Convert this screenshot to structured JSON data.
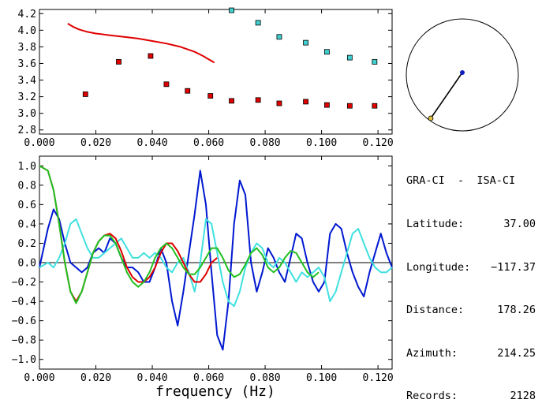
{
  "chart_data": [
    {
      "type": "scatter",
      "panel": "top",
      "xlim": [
        0.0,
        0.125
      ],
      "ylim": [
        2.75,
        4.25
      ],
      "xticks": [
        0.0,
        0.02,
        0.04,
        0.06,
        0.08,
        0.1,
        0.12
      ],
      "xtick_labels": [
        "0.000",
        "0.020",
        "0.040",
        "0.060",
        "0.080",
        "0.100",
        "0.120"
      ],
      "yticks": [
        2.8,
        3.0,
        3.2,
        3.4,
        3.6,
        3.8,
        4.0,
        4.2
      ],
      "ytick_labels": [
        "2.8",
        "3.0",
        "3.2",
        "3.4",
        "3.6",
        "3.8",
        "4.0",
        "4.2"
      ],
      "series": [
        {
          "color": "#e00000",
          "style": "line",
          "x": [
            0.01,
            0.012,
            0.014,
            0.017,
            0.02,
            0.025,
            0.03,
            0.035,
            0.04,
            0.045,
            0.05,
            0.055,
            0.058,
            0.06,
            0.062
          ],
          "y": [
            4.08,
            4.04,
            4.01,
            3.98,
            3.96,
            3.94,
            3.92,
            3.9,
            3.87,
            3.84,
            3.8,
            3.74,
            3.69,
            3.65,
            3.61
          ]
        },
        {
          "color": "#e00000",
          "style": "squares",
          "x": [
            0.0163,
            0.0281,
            0.0394,
            0.045,
            0.0525,
            0.0606,
            0.0681,
            0.0775,
            0.085,
            0.0944,
            0.1019,
            0.11,
            0.1188
          ],
          "y": [
            3.23,
            3.62,
            3.69,
            3.35,
            3.27,
            3.21,
            3.15,
            3.16,
            3.12,
            3.14,
            3.1,
            3.09,
            3.09
          ]
        },
        {
          "color": "#40d0d0",
          "style": "squares",
          "x": [
            0.0681,
            0.0775,
            0.085,
            0.0944,
            0.1019,
            0.11,
            0.1188
          ],
          "y": [
            4.24,
            4.09,
            3.92,
            3.85,
            3.74,
            3.67,
            3.62
          ]
        }
      ]
    },
    {
      "type": "line",
      "panel": "bottom",
      "xlim": [
        0.0,
        0.125
      ],
      "ylim": [
        -1.1,
        1.1
      ],
      "xlabel": "frequency (Hz)",
      "xticks": [
        0.0,
        0.02,
        0.04,
        0.06,
        0.08,
        0.1,
        0.12
      ],
      "xtick_labels": [
        "0.000",
        "0.020",
        "0.040",
        "0.060",
        "0.080",
        "0.100",
        "0.120"
      ],
      "yticks": [
        -1.0,
        -0.8,
        -0.6,
        -0.4,
        -0.2,
        0.0,
        0.2,
        0.4,
        0.6,
        0.8,
        1.0
      ],
      "ytick_labels": [
        "−1.0",
        "−0.8",
        "−0.6",
        "−0.4",
        "−0.2",
        "0.0",
        "0.2",
        "0.4",
        "0.6",
        "0.8",
        "1.0"
      ],
      "zero_line": true,
      "series": [
        {
          "color": "#0018d0",
          "x": [
            0.0,
            0.003,
            0.005,
            0.007,
            0.009,
            0.011,
            0.013,
            0.015,
            0.017,
            0.019,
            0.021,
            0.023,
            0.025,
            0.027,
            0.029,
            0.031,
            0.033,
            0.035,
            0.037,
            0.039,
            0.041,
            0.043,
            0.045,
            0.047,
            0.049,
            0.051,
            0.053,
            0.055,
            0.057,
            0.059,
            0.061,
            0.063,
            0.065,
            0.067,
            0.069,
            0.071,
            0.073,
            0.075,
            0.077,
            0.079,
            0.081,
            0.083,
            0.085,
            0.087,
            0.089,
            0.091,
            0.093,
            0.095,
            0.097,
            0.099,
            0.101,
            0.103,
            0.105,
            0.107,
            0.109,
            0.111,
            0.113,
            0.115,
            0.117,
            0.119,
            0.121,
            0.123,
            0.125
          ],
          "y": [
            -0.05,
            0.35,
            0.55,
            0.45,
            0.2,
            0.0,
            -0.05,
            -0.1,
            -0.05,
            0.1,
            0.15,
            0.1,
            0.25,
            0.2,
            0.05,
            -0.05,
            -0.05,
            -0.1,
            -0.2,
            -0.2,
            -0.05,
            0.15,
            0.0,
            -0.4,
            -0.65,
            -0.3,
            0.1,
            0.5,
            0.95,
            0.6,
            -0.1,
            -0.75,
            -0.9,
            -0.4,
            0.4,
            0.85,
            0.7,
            0.0,
            -0.3,
            -0.1,
            0.15,
            0.05,
            -0.1,
            -0.2,
            0.05,
            0.3,
            0.25,
            0.0,
            -0.2,
            -0.3,
            -0.2,
            0.3,
            0.4,
            0.35,
            0.1,
            -0.1,
            -0.25,
            -0.35,
            -0.1,
            0.1,
            0.3,
            0.1,
            -0.05
          ]
        },
        {
          "color": "#40e0e0",
          "x": [
            0.0,
            0.003,
            0.005,
            0.007,
            0.009,
            0.011,
            0.013,
            0.015,
            0.017,
            0.019,
            0.021,
            0.023,
            0.025,
            0.027,
            0.029,
            0.031,
            0.033,
            0.035,
            0.037,
            0.039,
            0.041,
            0.043,
            0.045,
            0.047,
            0.049,
            0.051,
            0.053,
            0.055,
            0.057,
            0.059,
            0.061,
            0.063,
            0.065,
            0.067,
            0.069,
            0.071,
            0.073,
            0.075,
            0.077,
            0.079,
            0.081,
            0.083,
            0.085,
            0.087,
            0.089,
            0.091,
            0.093,
            0.095,
            0.097,
            0.099,
            0.101,
            0.103,
            0.105,
            0.107,
            0.109,
            0.111,
            0.113,
            0.115,
            0.117,
            0.119,
            0.121,
            0.123,
            0.125
          ],
          "y": [
            -0.05,
            0.0,
            -0.05,
            0.05,
            0.2,
            0.4,
            0.45,
            0.3,
            0.15,
            0.05,
            0.05,
            0.1,
            0.15,
            0.2,
            0.25,
            0.15,
            0.05,
            0.05,
            0.1,
            0.05,
            0.1,
            0.05,
            -0.05,
            -0.1,
            0.0,
            0.05,
            -0.1,
            -0.3,
            0.0,
            0.45,
            0.4,
            0.1,
            -0.2,
            -0.4,
            -0.45,
            -0.3,
            -0.05,
            0.1,
            0.2,
            0.15,
            0.0,
            -0.05,
            0.05,
            0.0,
            -0.1,
            -0.2,
            -0.1,
            -0.15,
            -0.1,
            -0.05,
            -0.15,
            -0.4,
            -0.3,
            -0.1,
            0.1,
            0.3,
            0.35,
            0.2,
            0.05,
            -0.05,
            -0.1,
            -0.1,
            -0.05
          ]
        },
        {
          "color": "#e00000",
          "x": [
            0.0,
            0.003,
            0.005,
            0.007,
            0.009,
            0.011,
            0.013,
            0.015,
            0.017,
            0.019,
            0.021,
            0.023,
            0.025,
            0.027,
            0.029,
            0.031,
            0.033,
            0.035,
            0.037,
            0.039,
            0.041,
            0.043,
            0.045,
            0.047,
            0.049,
            0.051,
            0.053,
            0.055,
            0.057,
            0.059,
            0.061,
            0.063
          ],
          "y": [
            1.0,
            0.95,
            0.75,
            0.4,
            0.0,
            -0.3,
            -0.4,
            -0.3,
            -0.1,
            0.1,
            0.22,
            0.28,
            0.3,
            0.25,
            0.12,
            -0.05,
            -0.15,
            -0.2,
            -0.2,
            -0.15,
            -0.05,
            0.1,
            0.2,
            0.2,
            0.12,
            0.0,
            -0.12,
            -0.2,
            -0.2,
            -0.12,
            0.0,
            0.05
          ]
        },
        {
          "color": "#20c020",
          "x": [
            0.0,
            0.003,
            0.005,
            0.007,
            0.009,
            0.011,
            0.013,
            0.015,
            0.017,
            0.019,
            0.021,
            0.023,
            0.025,
            0.027,
            0.029,
            0.031,
            0.033,
            0.035,
            0.037,
            0.039,
            0.041,
            0.043,
            0.045,
            0.047,
            0.049,
            0.051,
            0.053,
            0.055,
            0.057,
            0.059,
            0.061,
            0.063,
            0.065,
            0.067,
            0.069,
            0.071,
            0.073,
            0.075,
            0.077,
            0.079,
            0.081,
            0.083,
            0.085,
            0.087,
            0.089,
            0.091,
            0.093,
            0.095,
            0.097,
            0.099
          ],
          "y": [
            1.0,
            0.95,
            0.75,
            0.4,
            0.0,
            -0.3,
            -0.42,
            -0.3,
            -0.1,
            0.1,
            0.22,
            0.28,
            0.28,
            0.2,
            0.05,
            -0.1,
            -0.2,
            -0.25,
            -0.2,
            -0.1,
            0.05,
            0.15,
            0.2,
            0.15,
            0.05,
            -0.05,
            -0.12,
            -0.12,
            -0.05,
            0.05,
            0.15,
            0.15,
            0.05,
            -0.08,
            -0.15,
            -0.12,
            -0.02,
            0.1,
            0.15,
            0.08,
            -0.05,
            -0.1,
            -0.05,
            0.05,
            0.12,
            0.1,
            0.0,
            -0.1,
            -0.15,
            -0.1
          ]
        }
      ]
    }
  ],
  "map_inset": {
    "line_color": "#000000",
    "center_dot_color": "#1020c0",
    "end_dot_color": "#e0c040",
    "azimuth_deg": 214.25
  },
  "info": {
    "title": "GRA-CI  -  ISA-CI",
    "rows": [
      {
        "label": "Latitude:",
        "value": "37.00"
      },
      {
        "label": "Longitude:",
        "value": "−117.37"
      },
      {
        "label": "Distance:",
        "value": "178.26"
      },
      {
        "label": "Azimuth:",
        "value": "214.25"
      },
      {
        "label": "Records:",
        "value": "2128"
      }
    ]
  }
}
